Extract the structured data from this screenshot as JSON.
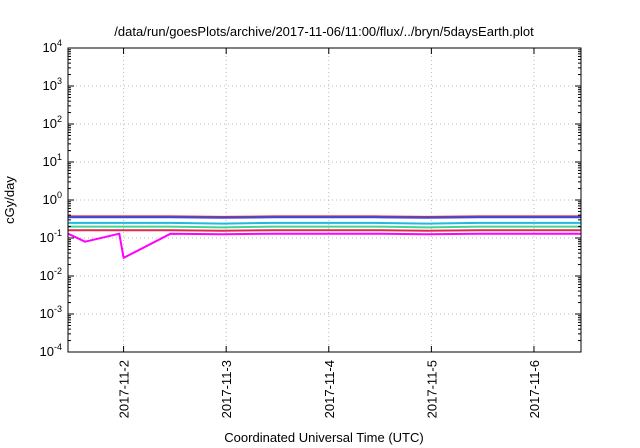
{
  "chart_data": {
    "type": "line",
    "title": "/data/run/goesPlots/archive/2017-11-06/11:00/flux/../bryn/5daysEarth.plot",
    "xlabel": "Coordinated Universal Time (UTC)",
    "ylabel": "cGy/day",
    "yscale": "log",
    "ylim": [
      0.0001,
      10000
    ],
    "xlim": [
      "2017-11-01T11:00",
      "2017-11-06T11:00"
    ],
    "grid": true,
    "y_ticks": [
      {
        "value": 0.0001,
        "base": "10",
        "exp": "-4"
      },
      {
        "value": 0.001,
        "base": "10",
        "exp": "-3"
      },
      {
        "value": 0.01,
        "base": "10",
        "exp": "-2"
      },
      {
        "value": 0.1,
        "base": "10",
        "exp": "-1"
      },
      {
        "value": 1,
        "base": "10",
        "exp": "0"
      },
      {
        "value": 10,
        "base": "10",
        "exp": "1"
      },
      {
        "value": 100,
        "base": "10",
        "exp": "2"
      },
      {
        "value": 1000,
        "base": "10",
        "exp": "3"
      },
      {
        "value": 10000,
        "base": "10",
        "exp": "4"
      }
    ],
    "x_ticks": [
      {
        "value": "2017-11-02T00:00",
        "label": "2017-11-2"
      },
      {
        "value": "2017-11-03T00:00",
        "label": "2017-11-3"
      },
      {
        "value": "2017-11-04T00:00",
        "label": "2017-11-4"
      },
      {
        "value": "2017-11-05T00:00",
        "label": "2017-11-5"
      },
      {
        "value": "2017-11-06T00:00",
        "label": "2017-11-6"
      }
    ],
    "series": [
      {
        "color": "#e8252a",
        "values": [
          [
            "2017-11-01T11:00",
            0.37
          ],
          [
            "2017-11-01T23:00",
            0.37
          ],
          [
            "2017-11-02T11:00",
            0.37
          ],
          [
            "2017-11-02T23:00",
            0.36
          ],
          [
            "2017-11-03T11:00",
            0.37
          ],
          [
            "2017-11-03T23:00",
            0.37
          ],
          [
            "2017-11-04T11:00",
            0.37
          ],
          [
            "2017-11-04T23:00",
            0.36
          ],
          [
            "2017-11-05T11:00",
            0.37
          ],
          [
            "2017-11-05T23:00",
            0.37
          ],
          [
            "2017-11-06T11:00",
            0.37
          ]
        ]
      },
      {
        "color": "#2f4ee6",
        "values": [
          [
            "2017-11-01T11:00",
            0.35
          ],
          [
            "2017-11-01T23:00",
            0.35
          ],
          [
            "2017-11-02T11:00",
            0.35
          ],
          [
            "2017-11-02T23:00",
            0.34
          ],
          [
            "2017-11-03T11:00",
            0.35
          ],
          [
            "2017-11-03T23:00",
            0.35
          ],
          [
            "2017-11-04T11:00",
            0.35
          ],
          [
            "2017-11-04T23:00",
            0.34
          ],
          [
            "2017-11-05T11:00",
            0.35
          ],
          [
            "2017-11-05T23:00",
            0.35
          ],
          [
            "2017-11-06T11:00",
            0.35
          ]
        ]
      },
      {
        "color": "#22b8e0",
        "values": [
          [
            "2017-11-01T11:00",
            0.25
          ],
          [
            "2017-11-01T23:00",
            0.25
          ],
          [
            "2017-11-02T11:00",
            0.25
          ],
          [
            "2017-11-02T23:00",
            0.24
          ],
          [
            "2017-11-03T11:00",
            0.25
          ],
          [
            "2017-11-03T23:00",
            0.25
          ],
          [
            "2017-11-04T11:00",
            0.25
          ],
          [
            "2017-11-04T23:00",
            0.24
          ],
          [
            "2017-11-05T11:00",
            0.25
          ],
          [
            "2017-11-05T23:00",
            0.25
          ],
          [
            "2017-11-06T11:00",
            0.25
          ]
        ]
      },
      {
        "color": "#3ed694",
        "values": [
          [
            "2017-11-01T11:00",
            0.2
          ],
          [
            "2017-11-01T23:00",
            0.2
          ],
          [
            "2017-11-02T11:00",
            0.2
          ],
          [
            "2017-11-02T23:00",
            0.19
          ],
          [
            "2017-11-03T11:00",
            0.2
          ],
          [
            "2017-11-03T23:00",
            0.2
          ],
          [
            "2017-11-04T11:00",
            0.2
          ],
          [
            "2017-11-04T23:00",
            0.19
          ],
          [
            "2017-11-05T11:00",
            0.2
          ],
          [
            "2017-11-05T23:00",
            0.2
          ],
          [
            "2017-11-06T11:00",
            0.2
          ]
        ]
      },
      {
        "color": "#e0284a",
        "values": [
          [
            "2017-11-01T11:00",
            0.16
          ],
          [
            "2017-11-01T23:00",
            0.16
          ],
          [
            "2017-11-02T11:00",
            0.16
          ],
          [
            "2017-11-02T23:00",
            0.155
          ],
          [
            "2017-11-03T11:00",
            0.16
          ],
          [
            "2017-11-03T23:00",
            0.16
          ],
          [
            "2017-11-04T11:00",
            0.16
          ],
          [
            "2017-11-04T23:00",
            0.155
          ],
          [
            "2017-11-05T11:00",
            0.16
          ],
          [
            "2017-11-05T23:00",
            0.16
          ],
          [
            "2017-11-06T11:00",
            0.16
          ]
        ]
      },
      {
        "color": "#ff00ff",
        "values": [
          [
            "2017-11-01T11:00",
            0.13
          ],
          [
            "2017-11-01T15:00",
            0.08
          ],
          [
            "2017-11-01T23:00",
            0.13
          ],
          [
            "2017-11-02T00:00",
            0.03
          ],
          [
            "2017-11-02T11:00",
            0.13
          ],
          [
            "2017-11-02T23:00",
            0.125
          ],
          [
            "2017-11-03T11:00",
            0.13
          ],
          [
            "2017-11-03T23:00",
            0.13
          ],
          [
            "2017-11-04T11:00",
            0.13
          ],
          [
            "2017-11-04T23:00",
            0.125
          ],
          [
            "2017-11-05T11:00",
            0.13
          ],
          [
            "2017-11-05T23:00",
            0.13
          ],
          [
            "2017-11-06T11:00",
            0.13
          ]
        ]
      }
    ]
  }
}
